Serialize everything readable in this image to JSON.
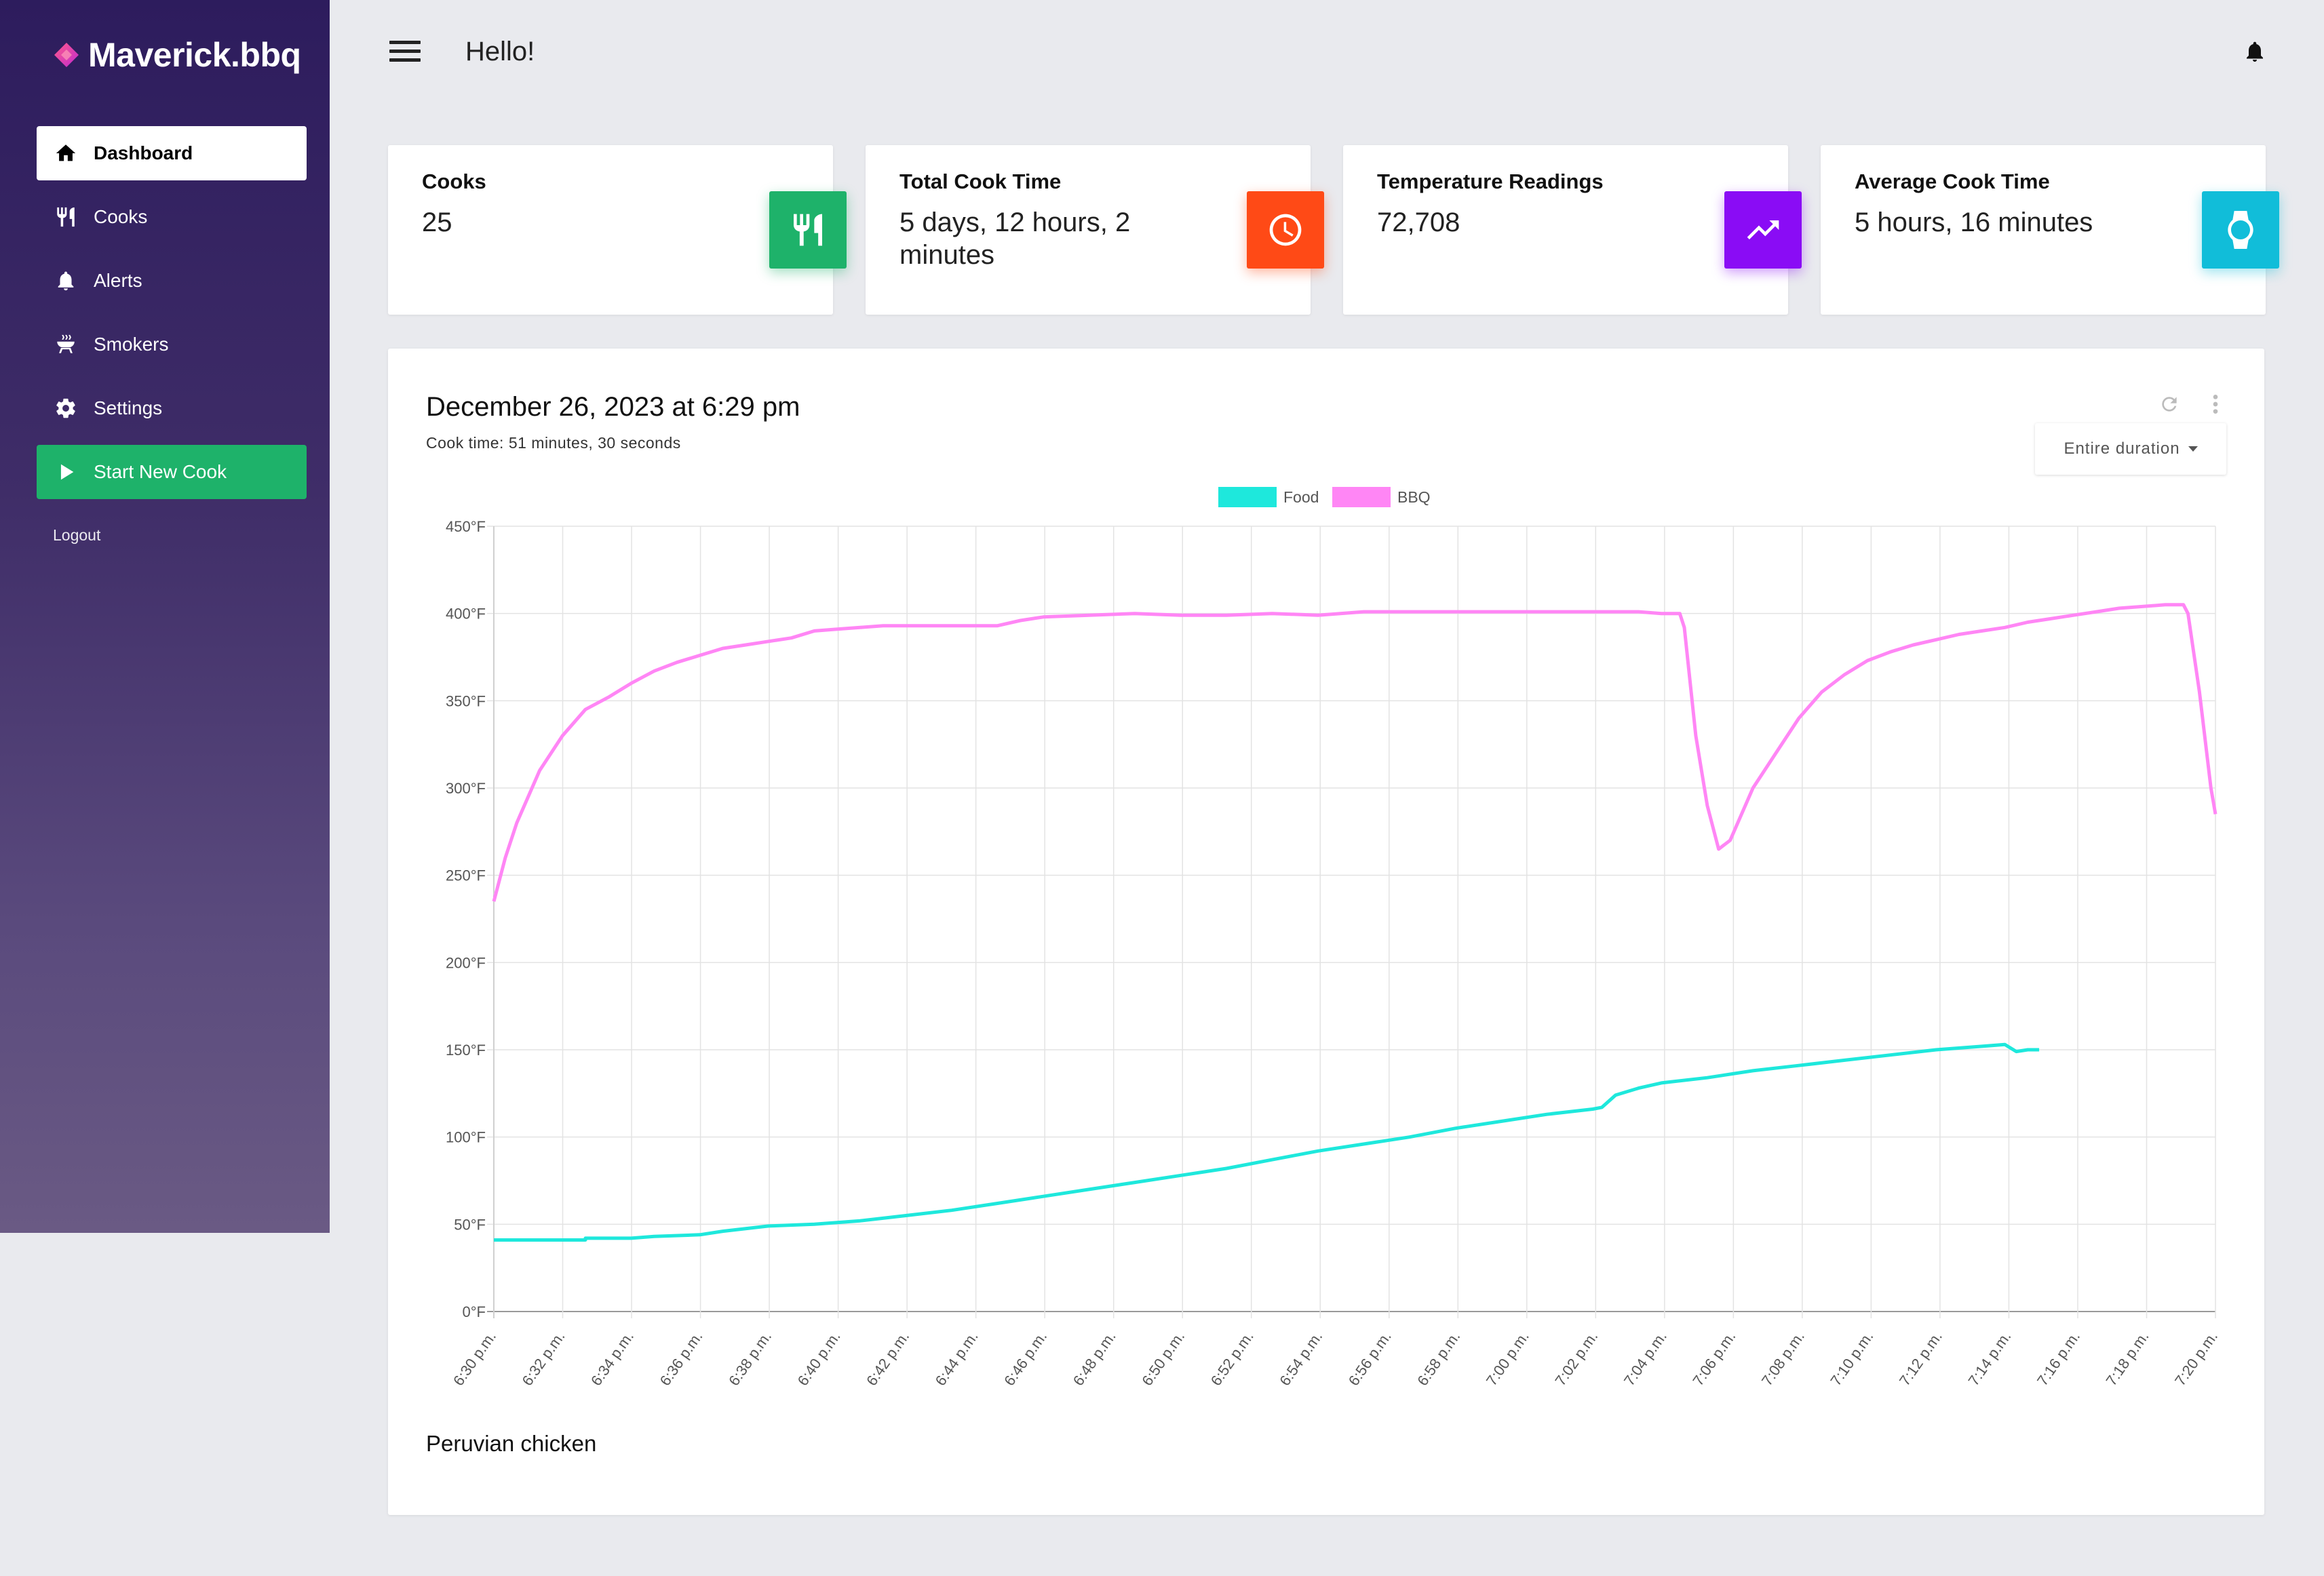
{
  "brand": {
    "name": "Maverick.bbq"
  },
  "sidebar": {
    "items": [
      {
        "label": "Dashboard",
        "icon": "home-icon"
      },
      {
        "label": "Cooks",
        "icon": "utensils-icon"
      },
      {
        "label": "Alerts",
        "icon": "bell-icon"
      },
      {
        "label": "Smokers",
        "icon": "grill-icon"
      },
      {
        "label": "Settings",
        "icon": "gear-icon"
      },
      {
        "label": "Start New Cook",
        "icon": "play-icon"
      }
    ],
    "logout": "Logout",
    "active_item": "Dashboard"
  },
  "header": {
    "greeting": "Hello!"
  },
  "stats": [
    {
      "title": "Cooks",
      "value": "25",
      "icon": "utensils-icon",
      "color": "#1eb26a"
    },
    {
      "title": "Total Cook Time",
      "value": "5 days, 12 hours, 2 minutes",
      "icon": "clock-icon",
      "color": "#ff4a16"
    },
    {
      "title": "Temperature Readings",
      "value": "72,708",
      "icon": "trending-up-icon",
      "color": "#8a0cf5"
    },
    {
      "title": "Average Cook Time",
      "value": "5 hours, 16 minutes",
      "icon": "watch-icon",
      "color": "#11bdd9"
    }
  ],
  "panel": {
    "title": "December 26, 2023 at 6:29 pm",
    "cook_time": "Cook time: 51 minutes, 30 seconds",
    "duration_select": "Entire duration",
    "note": "Peruvian chicken"
  },
  "chart_data": {
    "type": "line",
    "x_ticks": [
      "6:30 p.m.",
      "6:32 p.m.",
      "6:34 p.m.",
      "6:36 p.m.",
      "6:38 p.m.",
      "6:40 p.m.",
      "6:42 p.m.",
      "6:44 p.m.",
      "6:46 p.m.",
      "6:48 p.m.",
      "6:50 p.m.",
      "6:52 p.m.",
      "6:54 p.m.",
      "6:56 p.m.",
      "6:58 p.m.",
      "7:00 p.m.",
      "7:02 p.m.",
      "7:04 p.m.",
      "7:06 p.m.",
      "7:08 p.m.",
      "7:10 p.m.",
      "7:12 p.m.",
      "7:14 p.m.",
      "7:16 p.m.",
      "7:18 p.m.",
      "7:20 p.m."
    ],
    "y_ticks": [
      "0°F",
      "50°F",
      "100°F",
      "150°F",
      "200°F",
      "250°F",
      "300°F",
      "350°F",
      "400°F",
      "450°F"
    ],
    "ylim": [
      0,
      450
    ],
    "x_range_minutes": [
      0,
      50
    ],
    "legend_position": "top-center",
    "grid": true,
    "series": [
      {
        "name": "Food",
        "color": "#1ee8dc",
        "points": [
          [
            0,
            41
          ],
          [
            4,
            41
          ],
          [
            4,
            42
          ],
          [
            6,
            42
          ],
          [
            7,
            43
          ],
          [
            9,
            44
          ],
          [
            10,
            46
          ],
          [
            12,
            49
          ],
          [
            14,
            50
          ],
          [
            16,
            52
          ],
          [
            18,
            55
          ],
          [
            20,
            58
          ],
          [
            22,
            62
          ],
          [
            24,
            66
          ],
          [
            26,
            70
          ],
          [
            28,
            74
          ],
          [
            30,
            78
          ],
          [
            32,
            82
          ],
          [
            34,
            87
          ],
          [
            36,
            92
          ],
          [
            38,
            96
          ],
          [
            40,
            100
          ],
          [
            42,
            105
          ],
          [
            44,
            109
          ],
          [
            46,
            113
          ],
          [
            48,
            116
          ],
          [
            48.4,
            117
          ],
          [
            49,
            124
          ],
          [
            50,
            128
          ],
          [
            51,
            131
          ],
          [
            53,
            134
          ],
          [
            55,
            138
          ],
          [
            57,
            141
          ],
          [
            59,
            144
          ],
          [
            61,
            147
          ],
          [
            63,
            150
          ],
          [
            65,
            152
          ],
          [
            66,
            153
          ],
          [
            66.5,
            149
          ],
          [
            67,
            150
          ],
          [
            67.5,
            150
          ]
        ]
      },
      {
        "name": "BBQ",
        "color": "#ff86f5",
        "points": [
          [
            0,
            235
          ],
          [
            0.5,
            260
          ],
          [
            1,
            280
          ],
          [
            2,
            310
          ],
          [
            3,
            330
          ],
          [
            4,
            345
          ],
          [
            5,
            352
          ],
          [
            6,
            360
          ],
          [
            7,
            367
          ],
          [
            8,
            372
          ],
          [
            9,
            376
          ],
          [
            10,
            380
          ],
          [
            11,
            382
          ],
          [
            12,
            384
          ],
          [
            13,
            386
          ],
          [
            14,
            390
          ],
          [
            15,
            391
          ],
          [
            16,
            392
          ],
          [
            17,
            393
          ],
          [
            18,
            393
          ],
          [
            22,
            393
          ],
          [
            23,
            396
          ],
          [
            24,
            398
          ],
          [
            26,
            399
          ],
          [
            28,
            400
          ],
          [
            30,
            399
          ],
          [
            32,
            399
          ],
          [
            34,
            400
          ],
          [
            36,
            399
          ],
          [
            38,
            401
          ],
          [
            40,
            401
          ],
          [
            42,
            401
          ],
          [
            50,
            401
          ],
          [
            51,
            400
          ],
          [
            51.8,
            400
          ],
          [
            52,
            392
          ],
          [
            52.5,
            330
          ],
          [
            53,
            290
          ],
          [
            53.5,
            265
          ],
          [
            54,
            270
          ],
          [
            55,
            300
          ],
          [
            56,
            320
          ],
          [
            57,
            340
          ],
          [
            58,
            355
          ],
          [
            59,
            365
          ],
          [
            60,
            373
          ],
          [
            61,
            378
          ],
          [
            62,
            382
          ],
          [
            63,
            385
          ],
          [
            64,
            388
          ],
          [
            65,
            390
          ],
          [
            66,
            392
          ],
          [
            67,
            395
          ],
          [
            68,
            397
          ],
          [
            69,
            399
          ],
          [
            70,
            401
          ],
          [
            71,
            403
          ],
          [
            72,
            404
          ],
          [
            73,
            405
          ],
          [
            73.8,
            405
          ],
          [
            74,
            400
          ],
          [
            74.5,
            355
          ],
          [
            75,
            300
          ],
          [
            75.2,
            285
          ]
        ]
      }
    ]
  }
}
